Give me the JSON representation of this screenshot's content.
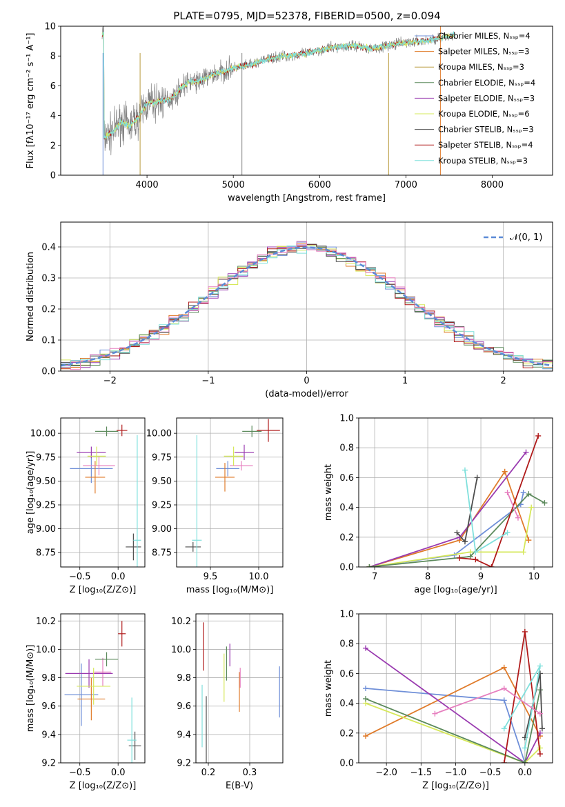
{
  "figure": {
    "title": "PLATE=0795, MJD=52378, FIBERID=0500, z=0.094"
  },
  "colors": {
    "chabrier_miles": "#6f8fd8",
    "salpeter_miles": "#e07b2a",
    "kroupa_miles": "#b89a3c",
    "chabrier_elodie": "#5c8a5c",
    "salpeter_elodie": "#9a3bb0",
    "kroupa_elodie": "#d6e85a",
    "chabrier_stelib": "#4d4d4d",
    "salpeter_stelib": "#b01a1a",
    "kroupa_stelib": "#7fe0dc",
    "pink": "#e67fbf",
    "data": "#808080"
  },
  "chart_data": [
    {
      "id": "spectrum",
      "type": "line",
      "title": "PLATE=0795, MJD=52378, FIBERID=0500, z=0.094",
      "xlabel": "wavelength [Angstrom, rest frame]",
      "ylabel": "Flux [fλ10⁻¹⁷ erg cm⁻² s⁻¹ A⁻¹]",
      "xlim": [
        3000,
        8700
      ],
      "ylim": [
        0,
        10
      ],
      "xticks": [
        4000,
        5000,
        6000,
        7000,
        8000
      ],
      "yticks": [
        0,
        2,
        4,
        6,
        8,
        10
      ],
      "legend": "top-right",
      "legend_entries": [
        {
          "label": "Chabrier MILES, Nₛₛₚ=4",
          "color": "#6f8fd8"
        },
        {
          "label": "Salpeter MILES, Nₛₛₚ=3",
          "color": "#e07b2a"
        },
        {
          "label": "Kroupa MILES, Nₛₛₚ=3",
          "color": "#b89a3c"
        },
        {
          "label": "Chabrier ELODIE, Nₛₛₚ=4",
          "color": "#5c8a5c"
        },
        {
          "label": "Salpeter ELODIE, Nₛₛₚ=3",
          "color": "#9a3bb0"
        },
        {
          "label": "Kroupa ELODIE, Nₛₛₚ=6",
          "color": "#d6e85a"
        },
        {
          "label": "Chabrier STELIB, Nₛₛₚ=3",
          "color": "#4d4d4d"
        },
        {
          "label": "Salpeter STELIB, Nₛₛₚ=4",
          "color": "#b01a1a"
        },
        {
          "label": "Kroupa STELIB, Nₛₛₚ=3",
          "color": "#7fe0dc"
        }
      ],
      "continuum": [
        [
          3500,
          2.5
        ],
        [
          3600,
          2.9
        ],
        [
          3700,
          3.6
        ],
        [
          3800,
          3.3
        ],
        [
          3900,
          3.9
        ],
        [
          4000,
          4.8
        ],
        [
          4100,
          4.9
        ],
        [
          4200,
          5.0
        ],
        [
          4300,
          5.2
        ],
        [
          4400,
          5.9
        ],
        [
          4500,
          6.3
        ],
        [
          4600,
          6.3
        ],
        [
          4700,
          6.6
        ],
        [
          4800,
          6.8
        ],
        [
          4900,
          7.0
        ],
        [
          5000,
          7.2
        ],
        [
          5200,
          7.4
        ],
        [
          5400,
          7.8
        ],
        [
          5600,
          8.0
        ],
        [
          5800,
          8.1
        ],
        [
          6000,
          8.4
        ],
        [
          6200,
          8.6
        ],
        [
          6400,
          8.7
        ],
        [
          6600,
          8.5
        ],
        [
          6800,
          8.7
        ],
        [
          7000,
          8.9
        ],
        [
          7200,
          9.0
        ],
        [
          7400,
          9.2
        ],
        [
          7600,
          9.5
        ]
      ],
      "spikes": [
        3490,
        3920,
        5100,
        6800,
        7400
      ]
    },
    {
      "id": "residuals",
      "type": "line",
      "xlabel": "(data-model)/error",
      "ylabel": "Normed distribution",
      "xlim": [
        -2.5,
        2.5
      ],
      "ylim": [
        0,
        0.48
      ],
      "xticks": [
        -2,
        -1,
        0,
        1,
        2
      ],
      "yticks": [
        0.0,
        0.1,
        0.2,
        0.3,
        0.4
      ],
      "legend": "top-right",
      "legend_entries": [
        {
          "label": "𝒩(0, 1)",
          "color": "#5b8ad6"
        }
      ]
    },
    {
      "id": "age_vs_Z",
      "type": "scatter",
      "xlabel": "Z [log₁₀(Z/Z⊙)]",
      "ylabel": "age  [log₁₀(age/yr)]",
      "xlim": [
        -0.75,
        0.35
      ],
      "ylim": [
        8.6,
        10.16
      ],
      "xticks": [
        -0.5,
        0.0
      ],
      "yticks": [
        8.75,
        9.0,
        9.25,
        9.5,
        9.75,
        10.0
      ],
      "points": [
        {
          "x": -0.35,
          "xerr": 0.28,
          "y": 9.63,
          "yerr": 0.15,
          "color": "#6f8fd8"
        },
        {
          "x": -0.3,
          "xerr": 0.13,
          "y": 9.54,
          "yerr": 0.17,
          "color": "#e07b2a"
        },
        {
          "x": -0.25,
          "xerr": 0.21,
          "y": 9.66,
          "yerr": 0.1,
          "color": "#e67fbf"
        },
        {
          "x": -0.35,
          "xerr": 0.19,
          "y": 9.8,
          "yerr": 0.06,
          "color": "#9a3bb0"
        },
        {
          "x": -0.28,
          "xerr": 0.12,
          "y": 9.76,
          "yerr": 0.1,
          "color": "#d6e85a"
        },
        {
          "x": -0.15,
          "xerr": 0.15,
          "y": 10.02,
          "yerr": 0.05,
          "color": "#5c8a5c"
        },
        {
          "x": 0.05,
          "xerr": 0.07,
          "y": 10.03,
          "yerr": 0.06,
          "color": "#b01a1a"
        },
        {
          "x": 0.2,
          "xerr": 0.1,
          "y": 8.81,
          "yerr": 0.14,
          "color": "#4d4d4d"
        },
        {
          "x": 0.25,
          "xerr": 0.05,
          "y": 8.88,
          "yerr": 1.1,
          "color": "#7fe0dc"
        }
      ]
    },
    {
      "id": "age_vs_mass",
      "type": "scatter",
      "xlabel": "mass [log₁₀(M/M⊙)]",
      "ylabel": "",
      "xlim": [
        9.15,
        10.25
      ],
      "ylim": [
        8.6,
        10.16
      ],
      "xticks": [
        9.5,
        10.0
      ],
      "yticks": [
        8.75,
        9.0,
        9.25,
        9.5,
        9.75,
        10.0
      ],
      "points": [
        {
          "x": 9.68,
          "xerr": 0.12,
          "y": 9.63,
          "yerr": 0.08,
          "color": "#6f8fd8"
        },
        {
          "x": 9.65,
          "xerr": 0.1,
          "y": 9.54,
          "yerr": 0.15,
          "color": "#e07b2a"
        },
        {
          "x": 9.82,
          "xerr": 0.12,
          "y": 9.66,
          "yerr": 0.05,
          "color": "#e67fbf"
        },
        {
          "x": 9.85,
          "xerr": 0.1,
          "y": 9.8,
          "yerr": 0.08,
          "color": "#9a3bb0"
        },
        {
          "x": 9.74,
          "xerr": 0.1,
          "y": 9.76,
          "yerr": 0.1,
          "color": "#d6e85a"
        },
        {
          "x": 9.93,
          "xerr": 0.1,
          "y": 10.02,
          "yerr": 0.06,
          "color": "#5c8a5c"
        },
        {
          "x": 10.1,
          "xerr": 0.12,
          "y": 10.03,
          "yerr": 0.12,
          "color": "#b01a1a"
        },
        {
          "x": 9.32,
          "xerr": 0.08,
          "y": 8.81,
          "yerr": 0.05,
          "color": "#4d4d4d"
        },
        {
          "x": 9.36,
          "xerr": 0.05,
          "y": 8.88,
          "yerr": 1.1,
          "color": "#7fe0dc"
        }
      ]
    },
    {
      "id": "weight_vs_age",
      "type": "line",
      "xlabel": "age  [log₁₀(age/yr)]",
      "ylabel": "mass weight",
      "xlim": [
        6.7,
        10.35
      ],
      "ylim": [
        0,
        1
      ],
      "xticks": [
        7,
        8,
        9,
        10
      ],
      "yticks": [
        0.0,
        0.2,
        0.4,
        0.6,
        0.8,
        1.0
      ],
      "series": [
        {
          "color": "#6f8fd8",
          "x": [
            6.9,
            8.5,
            9.75,
            9.8
          ],
          "y": [
            0.0,
            0.08,
            0.42,
            0.5
          ]
        },
        {
          "color": "#e07b2a",
          "x": [
            6.9,
            8.6,
            9.45,
            9.9
          ],
          "y": [
            0.0,
            0.18,
            0.64,
            0.18
          ]
        },
        {
          "color": "#9a3bb0",
          "x": [
            6.9,
            8.6,
            9.85
          ],
          "y": [
            0.0,
            0.2,
            0.77
          ]
        },
        {
          "color": "#d6e85a",
          "x": [
            6.9,
            8.8,
            9.8,
            9.95
          ],
          "y": [
            0.0,
            0.1,
            0.1,
            0.4
          ]
        },
        {
          "color": "#5c8a5c",
          "x": [
            6.9,
            8.8,
            9.9,
            10.2
          ],
          "y": [
            0.0,
            0.07,
            0.49,
            0.43
          ]
        },
        {
          "color": "#b01a1a",
          "x": [
            8.6,
            8.9,
            9.2,
            10.08
          ],
          "y": [
            0.06,
            0.05,
            0.0,
            0.88
          ]
        },
        {
          "color": "#4d4d4d",
          "x": [
            8.55,
            8.7,
            8.93
          ],
          "y": [
            0.23,
            0.17,
            0.6
          ]
        },
        {
          "color": "#7fe0dc",
          "x": [
            8.7,
            8.9,
            9.5
          ],
          "y": [
            0.65,
            0.1,
            0.23
          ]
        },
        {
          "color": "#e67fbf",
          "x": [
            9.5,
            9.7
          ],
          "y": [
            0.5,
            0.33
          ]
        }
      ]
    },
    {
      "id": "mass_vs_Z",
      "type": "scatter",
      "xlabel": "Z [log₁₀(Z/Z⊙)]",
      "ylabel": "mass [log₁₀(M/M⊙)]",
      "xlim": [
        -0.75,
        0.35
      ],
      "ylim": [
        9.2,
        10.25
      ],
      "xticks": [
        -0.5,
        0.0
      ],
      "yticks": [
        9.2,
        9.4,
        9.6,
        9.8,
        10.0,
        10.2
      ],
      "points": [
        {
          "x": -0.48,
          "xerr": 0.22,
          "y": 9.68,
          "yerr": 0.22,
          "color": "#6f8fd8"
        },
        {
          "x": -0.35,
          "xerr": 0.18,
          "y": 9.65,
          "yerr": 0.15,
          "color": "#e07b2a"
        },
        {
          "x": -0.2,
          "xerr": 0.11,
          "y": 9.84,
          "yerr": 0.1,
          "color": "#e67fbf"
        },
        {
          "x": -0.38,
          "xerr": 0.31,
          "y": 9.83,
          "yerr": 0.1,
          "color": "#9a3bb0"
        },
        {
          "x": -0.32,
          "xerr": 0.22,
          "y": 9.74,
          "yerr": 0.13,
          "color": "#d6e85a"
        },
        {
          "x": -0.15,
          "xerr": 0.15,
          "y": 9.93,
          "yerr": 0.05,
          "color": "#5c8a5c"
        },
        {
          "x": 0.05,
          "xerr": 0.05,
          "y": 10.11,
          "yerr": 0.09,
          "color": "#b01a1a"
        },
        {
          "x": 0.22,
          "xerr": 0.08,
          "y": 9.32,
          "yerr": 0.1,
          "color": "#4d4d4d"
        },
        {
          "x": 0.18,
          "xerr": 0.06,
          "y": 9.36,
          "yerr": 0.3,
          "color": "#7fe0dc"
        }
      ]
    },
    {
      "id": "mass_vs_ebv",
      "type": "scatter",
      "xlabel": "E(B-V)",
      "ylabel": "",
      "xlim": [
        0.17,
        0.38
      ],
      "ylim": [
        9.2,
        10.25
      ],
      "xticks": [
        0.2,
        0.3
      ],
      "yticks": [
        9.2,
        9.4,
        9.6,
        9.8,
        10.0,
        10.2
      ],
      "points": [
        {
          "x": 0.372,
          "xerr": 0.0,
          "y": 9.7,
          "yerr": 0.18,
          "color": "#6f8fd8"
        },
        {
          "x": 0.275,
          "xerr": 0.0,
          "y": 9.7,
          "yerr": 0.14,
          "color": "#e07b2a"
        },
        {
          "x": 0.277,
          "xerr": 0.0,
          "y": 9.8,
          "yerr": 0.07,
          "color": "#e67fbf"
        },
        {
          "x": 0.252,
          "xerr": 0.0,
          "y": 9.96,
          "yerr": 0.08,
          "color": "#9a3bb0"
        },
        {
          "x": 0.238,
          "xerr": 0.0,
          "y": 9.8,
          "yerr": 0.17,
          "color": "#d6e85a"
        },
        {
          "x": 0.244,
          "xerr": 0.0,
          "y": 9.9,
          "yerr": 0.12,
          "color": "#5c8a5c"
        },
        {
          "x": 0.188,
          "xerr": 0.0,
          "y": 10.02,
          "yerr": 0.17,
          "color": "#b01a1a"
        },
        {
          "x": 0.195,
          "xerr": 0.0,
          "y": 9.43,
          "yerr": 0.24,
          "color": "#4d4d4d"
        },
        {
          "x": 0.185,
          "xerr": 0.0,
          "y": 9.53,
          "yerr": 0.22,
          "color": "#7fe0dc"
        }
      ]
    },
    {
      "id": "weight_vs_Z",
      "type": "line",
      "xlabel": "Z [log₁₀(Z/Z⊙)]",
      "ylabel": "mass weight",
      "xlim": [
        -2.4,
        0.4
      ],
      "ylim": [
        0,
        1
      ],
      "xticks": [
        -2.0,
        -1.5,
        -1.0,
        -0.5,
        0.0
      ],
      "yticks": [
        0.0,
        0.2,
        0.4,
        0.6,
        0.8,
        1.0
      ],
      "series": [
        {
          "color": "#6f8fd8",
          "x": [
            -2.3,
            -0.3,
            0.0
          ],
          "y": [
            0.5,
            0.42,
            0.0
          ]
        },
        {
          "color": "#e07b2a",
          "x": [
            -2.3,
            -0.3,
            0.22
          ],
          "y": [
            0.18,
            0.64,
            0.18
          ]
        },
        {
          "color": "#9a3bb0",
          "x": [
            -2.3,
            0.0,
            0.22
          ],
          "y": [
            0.77,
            0.0,
            0.2
          ]
        },
        {
          "color": "#d6e85a",
          "x": [
            -2.3,
            0.0,
            0.22
          ],
          "y": [
            0.4,
            0.0,
            0.1
          ]
        },
        {
          "color": "#5c8a5c",
          "x": [
            -2.3,
            0.0,
            0.22
          ],
          "y": [
            0.43,
            0.0,
            0.49
          ]
        },
        {
          "color": "#b01a1a",
          "x": [
            -0.3,
            0.0,
            0.22
          ],
          "y": [
            0.0,
            0.88,
            0.06
          ]
        },
        {
          "color": "#4d4d4d",
          "x": [
            0.0,
            0.22,
            0.25
          ],
          "y": [
            0.17,
            0.6,
            0.23
          ]
        },
        {
          "color": "#7fe0dc",
          "x": [
            -0.3,
            0.22,
            0.0
          ],
          "y": [
            0.23,
            0.65,
            0.1
          ]
        },
        {
          "color": "#e67fbf",
          "x": [
            -1.3,
            -0.3,
            0.22
          ],
          "y": [
            0.33,
            0.5,
            0.33
          ]
        }
      ]
    }
  ]
}
